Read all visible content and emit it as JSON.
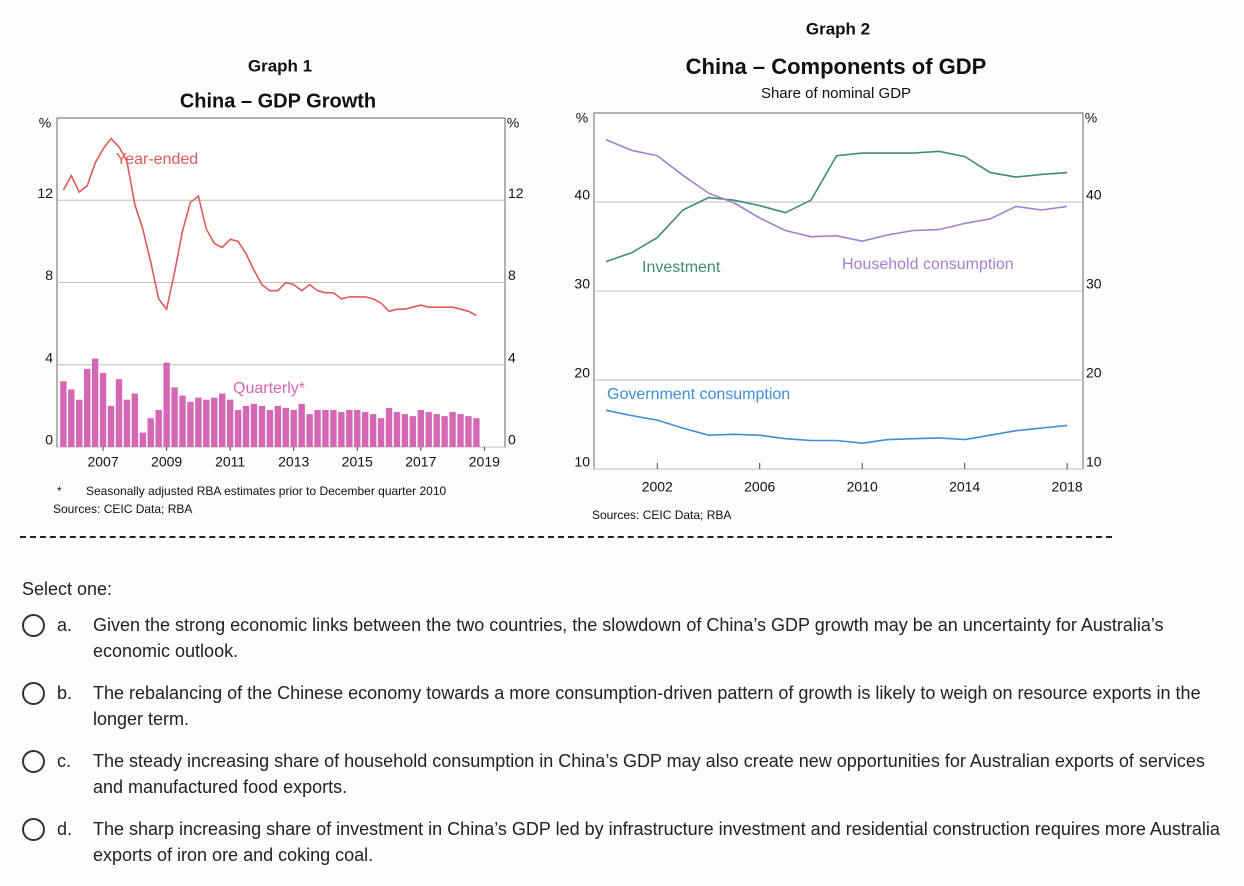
{
  "chart_data": [
    {
      "type": "line",
      "graph_label": "Graph 1",
      "title": "China – GDP Growth",
      "y_unit": "%",
      "x": [
        2005.75,
        2006,
        2006.25,
        2006.5,
        2006.75,
        2007,
        2007.25,
        2007.5,
        2007.75,
        2008,
        2008.25,
        2008.5,
        2008.75,
        2009,
        2009.25,
        2009.5,
        2009.75,
        2010,
        2010.25,
        2010.5,
        2010.75,
        2011,
        2011.25,
        2011.5,
        2011.75,
        2012,
        2012.25,
        2012.5,
        2012.75,
        2013,
        2013.25,
        2013.5,
        2013.75,
        2014,
        2014.25,
        2014.5,
        2014.75,
        2015,
        2015.25,
        2015.5,
        2015.75,
        2016,
        2016.25,
        2016.5,
        2016.75,
        2017,
        2017.25,
        2017.5,
        2017.75,
        2018,
        2018.25,
        2018.5,
        2018.75
      ],
      "series": [
        {
          "name": "Year-ended",
          "type": "line",
          "color": "#e05a5a",
          "values": [
            12.5,
            13.2,
            12.4,
            12.7,
            13.8,
            14.5,
            15.0,
            14.6,
            13.9,
            11.8,
            10.6,
            9.0,
            7.2,
            6.7,
            8.5,
            10.5,
            11.9,
            12.2,
            10.6,
            9.9,
            9.7,
            10.1,
            10.0,
            9.4,
            8.6,
            7.9,
            7.6,
            7.6,
            8.0,
            7.9,
            7.6,
            7.9,
            7.6,
            7.5,
            7.5,
            7.2,
            7.3,
            7.3,
            7.3,
            7.2,
            7.0,
            6.6,
            6.7,
            6.7,
            6.8,
            6.9,
            6.8,
            6.8,
            6.8,
            6.8,
            6.7,
            6.6,
            6.4
          ]
        },
        {
          "name": "Quarterly*",
          "type": "bar",
          "color": "#d667b4",
          "values": [
            3.2,
            2.8,
            2.3,
            3.8,
            4.3,
            3.6,
            2.0,
            3.3,
            2.3,
            2.6,
            0.7,
            1.4,
            1.8,
            4.1,
            2.9,
            2.5,
            2.2,
            2.4,
            2.3,
            2.4,
            2.6,
            2.3,
            1.8,
            2.0,
            2.1,
            2.0,
            1.8,
            2.0,
            1.9,
            1.8,
            2.1,
            1.6,
            1.8,
            1.8,
            1.8,
            1.7,
            1.8,
            1.8,
            1.7,
            1.6,
            1.4,
            1.9,
            1.7,
            1.6,
            1.5,
            1.8,
            1.7,
            1.6,
            1.5,
            1.7,
            1.6,
            1.5,
            1.4
          ]
        }
      ],
      "xlim": [
        2005.55,
        2019.65
      ],
      "xticks": [
        2007,
        2009,
        2011,
        2013,
        2015,
        2017,
        2019
      ],
      "ylim": [
        0,
        16
      ],
      "yticks": [
        0,
        4,
        8,
        12
      ],
      "grid": true,
      "footnote": {
        "marker": "*",
        "text": "Seasonally adjusted RBA estimates prior to December quarter 2010"
      },
      "source": "Sources:  CEIC Data; RBA"
    },
    {
      "type": "line",
      "graph_label": "Graph 2",
      "title": "China – Components of GDP",
      "subtitle": "Share of nominal GDP",
      "y_unit": "%",
      "x": [
        2000,
        2001,
        2002,
        2003,
        2004,
        2005,
        2006,
        2007,
        2008,
        2009,
        2010,
        2011,
        2012,
        2013,
        2014,
        2015,
        2016,
        2017,
        2018
      ],
      "series": [
        {
          "name": "Investment",
          "color": "#3e8f6a",
          "values": [
            33.3,
            34.3,
            36.0,
            39.1,
            40.5,
            40.2,
            39.6,
            38.8,
            40.2,
            45.2,
            45.5,
            45.5,
            45.5,
            45.7,
            45.1,
            43.3,
            42.8,
            43.1,
            43.3
          ]
        },
        {
          "name": "Household consumption",
          "color": "#a57fd0",
          "values": [
            47.0,
            45.8,
            45.2,
            43.0,
            41.0,
            39.9,
            38.2,
            36.8,
            36.1,
            36.2,
            35.6,
            36.3,
            36.8,
            36.9,
            37.6,
            38.1,
            39.5,
            39.1,
            39.5
          ]
        },
        {
          "name": "Government consumption",
          "color": "#3f8fd8",
          "values": [
            16.6,
            16.0,
            15.5,
            14.6,
            13.8,
            13.9,
            13.8,
            13.4,
            13.2,
            13.2,
            12.9,
            13.3,
            13.4,
            13.5,
            13.3,
            13.8,
            14.3,
            14.6,
            14.9
          ]
        }
      ],
      "xlim": [
        1999.53,
        2018.62
      ],
      "xticks": [
        2002,
        2006,
        2010,
        2014,
        2018
      ],
      "ylim": [
        10,
        50
      ],
      "yticks": [
        10,
        20,
        30,
        40
      ],
      "grid": true,
      "source": "Sources:  CEIC Data; RBA"
    }
  ],
  "quiz": {
    "prompt": "Select one:",
    "options": [
      {
        "letter": "a.",
        "text": "Given the strong economic links between the two countries, the slowdown of China’s GDP growth may be an uncertainty for Australia’s economic outlook."
      },
      {
        "letter": "b.",
        "text": "The rebalancing of the Chinese economy towards a more consumption-driven pattern of growth is likely to weigh on resource exports in the longer term."
      },
      {
        "letter": "c.",
        "text": "The steady increasing share of household consumption in China’s GDP may also create new opportunities for Australian exports of services and manufactured food exports."
      },
      {
        "letter": "d.",
        "text": "The sharp increasing share of investment in China’s GDP led by infrastructure investment and residential construction requires more Australia exports of iron ore and coking coal."
      }
    ]
  }
}
